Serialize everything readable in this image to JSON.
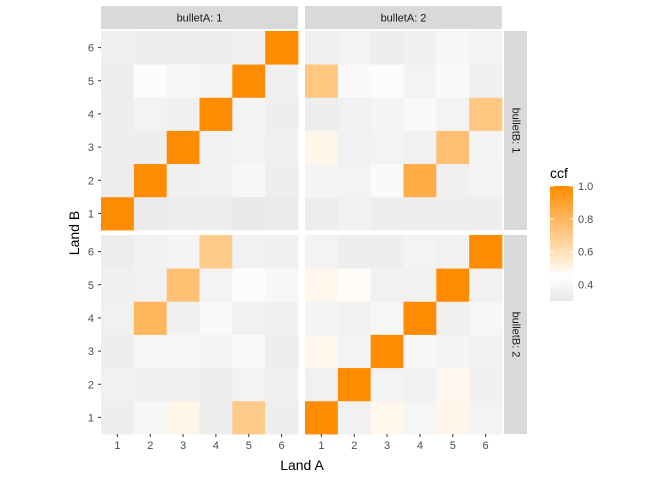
{
  "chart_data": {
    "type": "heatmap",
    "title": "",
    "xlabel": "Land A",
    "ylabel": "Land B",
    "x_categories": [
      "1",
      "2",
      "3",
      "4",
      "5",
      "6"
    ],
    "y_categories": [
      "1",
      "2",
      "3",
      "4",
      "5",
      "6"
    ],
    "facet_col_var": "bulletA",
    "facet_row_var": "bulletB",
    "facet_cols": [
      "bulletA: 1",
      "bulletA: 2"
    ],
    "facet_rows": [
      "bulletB: 1",
      "bulletB: 2"
    ],
    "legend": {
      "title": "ccf",
      "position": "right",
      "range": [
        0.3,
        1.0
      ],
      "ticks": [
        0.4,
        0.6,
        0.8,
        1.0
      ],
      "tick_labels": [
        "0.4",
        "0.6",
        "0.8",
        "1.0"
      ],
      "color_low": "#e8e8e8",
      "color_mid": "#ffffff",
      "color_high": "#ff8c00",
      "midpoint": 0.45
    },
    "panels": [
      {
        "col": "bulletA: 1",
        "row": "bulletB: 1",
        "values": [
          [
            1.0,
            0.32,
            0.33,
            0.33,
            0.3,
            0.32
          ],
          [
            0.33,
            1.0,
            0.35,
            0.36,
            0.4,
            0.34
          ],
          [
            0.34,
            0.34,
            1.0,
            0.36,
            0.38,
            0.35
          ],
          [
            0.34,
            0.37,
            0.35,
            1.0,
            0.38,
            0.34
          ],
          [
            0.33,
            0.43,
            0.4,
            0.38,
            1.0,
            0.35
          ],
          [
            0.35,
            0.34,
            0.34,
            0.34,
            0.35,
            1.0
          ]
        ]
      },
      {
        "col": "bulletA: 2",
        "row": "bulletB: 1",
        "values": [
          [
            0.33,
            0.36,
            0.33,
            0.34,
            0.34,
            0.33
          ],
          [
            0.38,
            0.37,
            0.42,
            0.85,
            0.35,
            0.37
          ],
          [
            0.5,
            0.36,
            0.37,
            0.36,
            0.75,
            0.38
          ],
          [
            0.34,
            0.36,
            0.38,
            0.41,
            0.37,
            0.72
          ],
          [
            0.72,
            0.42,
            0.43,
            0.37,
            0.42,
            0.35
          ],
          [
            0.35,
            0.37,
            0.34,
            0.35,
            0.4,
            0.37
          ]
        ]
      },
      {
        "col": "bulletA: 1",
        "row": "bulletB: 2",
        "values": [
          [
            0.34,
            0.4,
            0.5,
            0.34,
            0.7,
            0.34
          ],
          [
            0.36,
            0.35,
            0.35,
            0.34,
            0.37,
            0.35
          ],
          [
            0.34,
            0.4,
            0.39,
            0.38,
            0.41,
            0.34
          ],
          [
            0.36,
            0.8,
            0.35,
            0.41,
            0.36,
            0.35
          ],
          [
            0.35,
            0.36,
            0.75,
            0.37,
            0.43,
            0.4
          ],
          [
            0.33,
            0.36,
            0.38,
            0.7,
            0.36,
            0.35
          ]
        ]
      },
      {
        "col": "bulletA: 2",
        "row": "bulletB: 2",
        "values": [
          [
            1.0,
            0.36,
            0.49,
            0.39,
            0.5,
            0.37
          ],
          [
            0.36,
            1.0,
            0.37,
            0.36,
            0.48,
            0.35
          ],
          [
            0.49,
            0.37,
            1.0,
            0.4,
            0.38,
            0.36
          ],
          [
            0.38,
            0.36,
            0.4,
            1.0,
            0.35,
            0.39
          ],
          [
            0.49,
            0.47,
            0.36,
            0.36,
            1.0,
            0.36
          ],
          [
            0.37,
            0.34,
            0.34,
            0.37,
            0.36,
            1.0
          ]
        ]
      }
    ]
  }
}
